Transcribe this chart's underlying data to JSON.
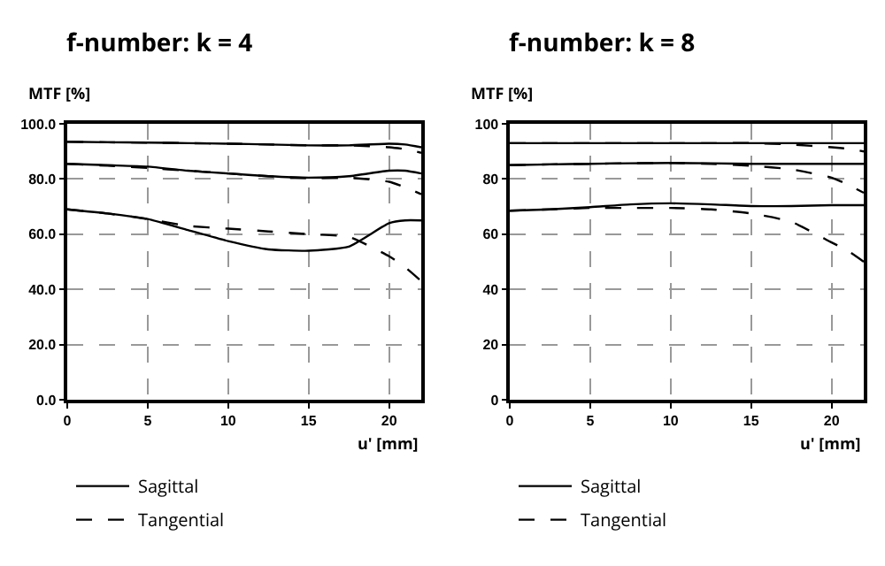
{
  "chart_data": [
    {
      "type": "line",
      "title": "f-number: k = 4",
      "ylabel": "MTF [%]",
      "xlabel": "u' [mm]",
      "x": [
        0,
        2.5,
        5,
        7.5,
        10,
        12.5,
        15,
        17.5,
        20,
        21,
        22
      ],
      "xlim": [
        0,
        22
      ],
      "ylim": [
        0,
        100
      ],
      "xticks": [
        0,
        5,
        10,
        15,
        20
      ],
      "yticks": [
        {
          "value": 0,
          "label": "0.0"
        },
        {
          "value": 20,
          "label": "20.0"
        },
        {
          "value": 40,
          "label": "40.0"
        },
        {
          "value": 60,
          "label": "60.0"
        },
        {
          "value": 80,
          "label": "80.0"
        },
        {
          "value": 100,
          "label": "100.0"
        }
      ],
      "grid": true,
      "legend": "bottom left",
      "series": [
        {
          "name": "Sagittal",
          "color": "#000000",
          "line_style": "solid",
          "values": [
            93.5,
            93.3,
            93.2,
            93,
            92.8,
            92.5,
            92.2,
            92.2,
            92.8,
            92.5,
            91.5
          ]
        },
        {
          "name": "Tangential",
          "color": "#000000",
          "line_style": "dashed",
          "values": [
            93.5,
            93.3,
            93.2,
            93,
            92.8,
            92.5,
            92.2,
            92.2,
            91.5,
            90.8,
            89.5
          ]
        },
        {
          "color": "#000000",
          "line_style": "solid",
          "values": [
            85.5,
            85,
            84.5,
            83,
            82,
            81,
            80.5,
            81,
            83,
            83,
            82
          ]
        },
        {
          "color": "#000000",
          "line_style": "dashed",
          "values": [
            85.5,
            84.8,
            84,
            83,
            82,
            81,
            80.3,
            80.5,
            79,
            77,
            74.5
          ]
        },
        {
          "color": "#000000",
          "line_style": "solid",
          "values": [
            69,
            67.5,
            65.5,
            61.5,
            57.5,
            54.5,
            54,
            55.5,
            64,
            65,
            65
          ]
        },
        {
          "color": "#000000",
          "line_style": "dashed",
          "values": [
            69,
            67.5,
            65.5,
            63,
            62,
            61,
            60,
            59,
            52,
            48,
            43
          ]
        }
      ]
    },
    {
      "type": "line",
      "title": "f-number: k = 8",
      "ylabel": "MTF [%]",
      "xlabel": "u' [mm]",
      "x": [
        0,
        2.5,
        5,
        7.5,
        10,
        12.5,
        15,
        17.5,
        20,
        21,
        22
      ],
      "xlim": [
        0,
        22
      ],
      "ylim": [
        0,
        100
      ],
      "xticks": [
        0,
        5,
        10,
        15,
        20
      ],
      "yticks": [
        0,
        20,
        40,
        60,
        80,
        100
      ],
      "grid": true,
      "legend": "bottom left",
      "series": [
        {
          "name": "Sagittal",
          "color": "#000000",
          "line_style": "solid",
          "values": [
            93,
            93,
            93,
            93,
            93,
            93,
            93,
            93,
            93,
            93,
            93
          ]
        },
        {
          "name": "Tangential",
          "color": "#000000",
          "line_style": "dashed",
          "values": [
            93,
            93,
            93,
            93,
            93,
            93,
            93,
            92.5,
            91.5,
            91,
            90
          ]
        },
        {
          "color": "#000000",
          "line_style": "solid",
          "values": [
            85,
            85.3,
            85.5,
            85.7,
            85.8,
            85.7,
            85.5,
            85.5,
            85.5,
            85.5,
            85.5
          ]
        },
        {
          "color": "#000000",
          "line_style": "dashed",
          "values": [
            85,
            85.3,
            85.5,
            85.7,
            85.8,
            85.5,
            84.8,
            83.5,
            80.5,
            78,
            75
          ]
        },
        {
          "color": "#000000",
          "line_style": "solid",
          "values": [
            68.5,
            69,
            69.8,
            70.8,
            71.2,
            70.8,
            70.2,
            70.2,
            70.5,
            70.5,
            70.5
          ]
        },
        {
          "color": "#000000",
          "line_style": "dashed",
          "values": [
            68.5,
            69,
            69.5,
            69.5,
            69.5,
            69,
            67.5,
            64.5,
            57,
            54,
            50
          ]
        }
      ]
    }
  ]
}
